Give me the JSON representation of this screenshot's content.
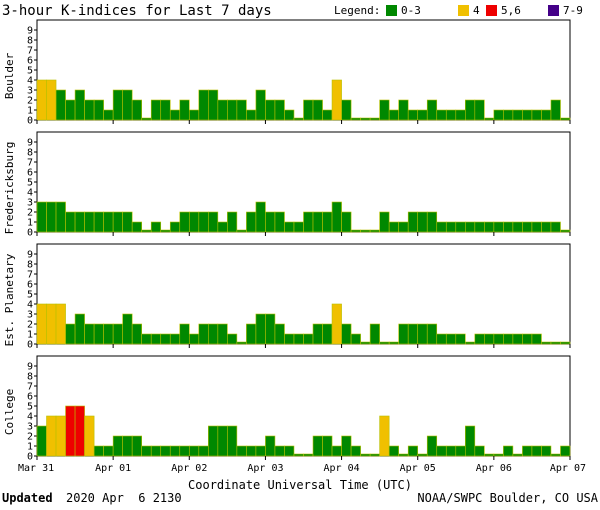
{
  "title": "3-hour K-indices for Last 7 days",
  "legend": {
    "label": "Legend:",
    "items": [
      {
        "label": "0-3",
        "color": "#008800"
      },
      {
        "label": "4",
        "color": "#f0c000"
      },
      {
        "label": "5,6",
        "color": "#ee0000"
      },
      {
        "label": "7-9",
        "color": "#440088"
      }
    ]
  },
  "footer": {
    "updated_label": "Updated",
    "updated_value": "2020 Apr  6 2130",
    "source": "NOAA/SWPC Boulder, CO USA"
  },
  "chart_data": {
    "type": "bar",
    "xlabel": "Coordinate Universal Time (UTC)",
    "x_ticks": [
      "Mar 31",
      "Apr 01",
      "Apr 02",
      "Apr 03",
      "Apr 04",
      "Apr 05",
      "Apr 06",
      "Apr 07"
    ],
    "ylim": [
      0,
      9
    ],
    "y_ticks": [
      0,
      1,
      2,
      3,
      4,
      5,
      6,
      7,
      8,
      9
    ],
    "grid": false,
    "bar_colors": {
      "0-3": "#008800",
      "4": "#f0c000",
      "5,6": "#ee0000",
      "7-9": "#440088"
    },
    "panels": [
      {
        "name": "Boulder",
        "values": [
          4,
          4,
          3,
          2,
          3,
          2,
          2,
          1,
          3,
          3,
          2,
          0,
          2,
          2,
          1,
          2,
          1,
          3,
          3,
          2,
          2,
          2,
          1,
          3,
          2,
          2,
          1,
          0,
          2,
          2,
          1,
          4,
          2,
          0,
          0,
          0,
          2,
          1,
          2,
          1,
          1,
          2,
          1,
          1,
          1,
          2,
          2,
          0,
          1,
          1,
          1,
          1,
          1,
          1,
          2,
          0,
          0
        ]
      },
      {
        "name": "Fredericksburg",
        "values": [
          3,
          3,
          3,
          2,
          2,
          2,
          2,
          2,
          2,
          2,
          1,
          0,
          1,
          0,
          1,
          2,
          2,
          2,
          2,
          1,
          2,
          0,
          2,
          3,
          2,
          2,
          1,
          1,
          2,
          2,
          2,
          3,
          2,
          0,
          0,
          0,
          2,
          1,
          1,
          2,
          2,
          2,
          1,
          1,
          1,
          1,
          1,
          1,
          1,
          1,
          1,
          1,
          1,
          1,
          1,
          0,
          0
        ]
      },
      {
        "name": "Est. Planetary",
        "values": [
          4,
          4,
          4,
          2,
          3,
          2,
          2,
          2,
          2,
          3,
          2,
          1,
          1,
          1,
          1,
          2,
          1,
          2,
          2,
          2,
          1,
          0,
          2,
          3,
          3,
          2,
          1,
          1,
          1,
          2,
          2,
          4,
          2,
          1,
          0,
          2,
          0,
          0,
          2,
          2,
          2,
          2,
          1,
          1,
          1,
          0,
          1,
          1,
          1,
          1,
          1,
          1,
          1,
          0,
          0,
          0
        ]
      },
      {
        "name": "College",
        "values": [
          3,
          4,
          4,
          5,
          5,
          4,
          1,
          1,
          2,
          2,
          2,
          1,
          1,
          1,
          1,
          1,
          1,
          1,
          3,
          3,
          3,
          1,
          1,
          1,
          2,
          1,
          1,
          0,
          0,
          2,
          2,
          1,
          2,
          1,
          0,
          0,
          4,
          1,
          0,
          1,
          0,
          2,
          1,
          1,
          1,
          3,
          1,
          0,
          0,
          1,
          0,
          1,
          1,
          1,
          0,
          1,
          0
        ]
      }
    ]
  }
}
